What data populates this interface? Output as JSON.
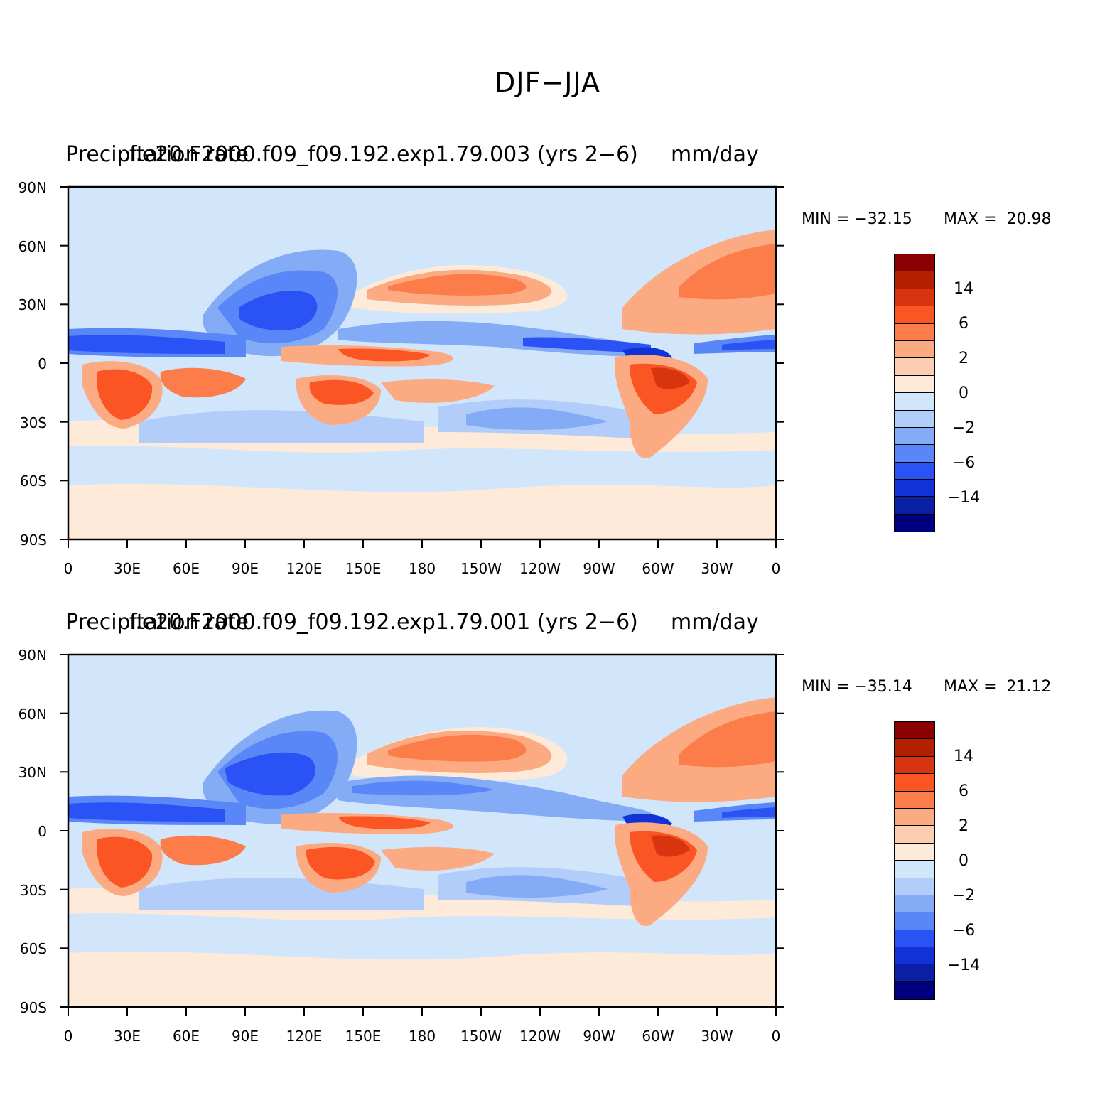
{
  "figure_title": "DJF−JJA",
  "panels": [
    {
      "left_title": "Precipitation rate",
      "center_title": "f.e20.F2000.f09_f09.192.exp1.79.003 (yrs 2−6)",
      "right_title": "mm/day",
      "min_label": "MIN = −32.15",
      "max_label": "MAX =  20.98"
    },
    {
      "left_title": "Precipitation rate",
      "center_title": "f.e20.F2000.f09_f09.192.exp1.79.001 (yrs 2−6)",
      "right_title": "mm/day",
      "min_label": "MIN = −35.14",
      "max_label": "MAX =  21.12"
    }
  ],
  "axes": {
    "lat_labels": [
      "90N",
      "60N",
      "30N",
      "0",
      "30S",
      "60S",
      "90S"
    ],
    "lon_labels": [
      "0",
      "30E",
      "60E",
      "90E",
      "120E",
      "150E",
      "180",
      "150W",
      "120W",
      "90W",
      "60W",
      "30W",
      "0"
    ]
  },
  "colorbar": {
    "colors": [
      "#8b0000",
      "#b22000",
      "#d83410",
      "#fb5524",
      "#fc7d49",
      "#fcaa82",
      "#fdcdb2",
      "#feead8",
      "#d2e6fb",
      "#b2cdfa",
      "#84acf6",
      "#5a87f7",
      "#2b52f5",
      "#1032d6",
      "#0a1ea6",
      "#00007f"
    ],
    "tick_labels": [
      "14",
      "6",
      "2",
      "0",
      "−2",
      "−6",
      "−14"
    ]
  }
}
